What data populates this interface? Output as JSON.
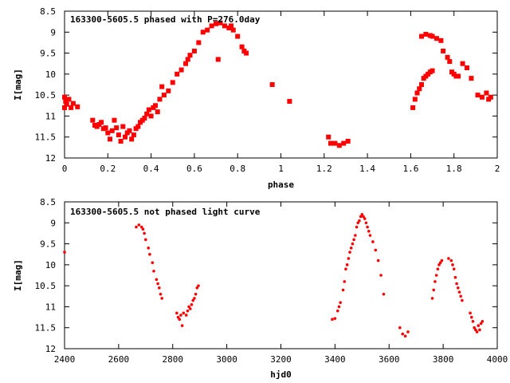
{
  "chart_data": [
    {
      "type": "scatter",
      "title": "163300-5605.5 phased with P=276.0day",
      "xlabel": "phase",
      "ylabel": "I[mag]",
      "xlim": [
        0,
        2
      ],
      "ylim": [
        12,
        8.5
      ],
      "y_inverted": true,
      "xticks": [
        "0",
        "0.2",
        "0.4",
        "0.6",
        "0.8",
        "1",
        "1.2",
        "1.4",
        "1.6",
        "1.8",
        "2"
      ],
      "yticks": [
        "8.5",
        "9",
        "9.5",
        "10",
        "10.5",
        "11",
        "11.5",
        "12"
      ],
      "grid": false,
      "color": "#ff0000",
      "points": [
        [
          0.0,
          10.55
        ],
        [
          0.005,
          10.65
        ],
        [
          0.01,
          10.72
        ],
        [
          0.02,
          10.6
        ],
        [
          0.03,
          10.8
        ],
        [
          0.04,
          10.7
        ],
        [
          0.06,
          10.78
        ],
        [
          0.0,
          10.8
        ],
        [
          0.13,
          11.1
        ],
        [
          0.14,
          11.22
        ],
        [
          0.15,
          11.25
        ],
        [
          0.16,
          11.2
        ],
        [
          0.17,
          11.15
        ],
        [
          0.18,
          11.3
        ],
        [
          0.19,
          11.28
        ],
        [
          0.2,
          11.4
        ],
        [
          0.21,
          11.55
        ],
        [
          0.22,
          11.35
        ],
        [
          0.23,
          11.1
        ],
        [
          0.24,
          11.28
        ],
        [
          0.25,
          11.45
        ],
        [
          0.26,
          11.6
        ],
        [
          0.27,
          11.25
        ],
        [
          0.28,
          11.5
        ],
        [
          0.29,
          11.4
        ],
        [
          0.3,
          11.35
        ],
        [
          0.31,
          11.55
        ],
        [
          0.32,
          11.45
        ],
        [
          0.33,
          11.3
        ],
        [
          0.34,
          11.25
        ],
        [
          0.35,
          11.15
        ],
        [
          0.36,
          11.1
        ],
        [
          0.37,
          11.05
        ],
        [
          0.38,
          10.95
        ],
        [
          0.39,
          10.85
        ],
        [
          0.4,
          11.0
        ],
        [
          0.41,
          10.8
        ],
        [
          0.42,
          10.75
        ],
        [
          0.43,
          10.9
        ],
        [
          0.44,
          10.6
        ],
        [
          0.45,
          10.3
        ],
        [
          0.46,
          10.5
        ],
        [
          0.48,
          10.4
        ],
        [
          0.5,
          10.2
        ],
        [
          0.52,
          10.0
        ],
        [
          0.54,
          9.9
        ],
        [
          0.56,
          9.75
        ],
        [
          0.57,
          9.65
        ],
        [
          0.58,
          9.55
        ],
        [
          0.6,
          9.45
        ],
        [
          0.62,
          9.25
        ],
        [
          0.64,
          9.0
        ],
        [
          0.66,
          8.95
        ],
        [
          0.68,
          8.85
        ],
        [
          0.7,
          8.8
        ],
        [
          0.71,
          9.65
        ],
        [
          0.72,
          8.78
        ],
        [
          0.74,
          8.85
        ],
        [
          0.76,
          8.9
        ],
        [
          0.77,
          8.85
        ],
        [
          0.78,
          8.95
        ],
        [
          0.8,
          9.1
        ],
        [
          0.82,
          9.35
        ],
        [
          0.83,
          9.45
        ],
        [
          0.84,
          9.5
        ],
        [
          0.96,
          10.25
        ],
        [
          1.04,
          10.65
        ],
        [
          1.22,
          11.5
        ],
        [
          1.23,
          11.65
        ],
        [
          1.25,
          11.65
        ],
        [
          1.27,
          11.7
        ],
        [
          1.29,
          11.65
        ],
        [
          1.31,
          11.6
        ],
        [
          1.61,
          10.8
        ],
        [
          1.62,
          10.6
        ],
        [
          1.63,
          10.45
        ],
        [
          1.64,
          10.35
        ],
        [
          1.65,
          10.25
        ],
        [
          1.66,
          10.1
        ],
        [
          1.67,
          10.05
        ],
        [
          1.68,
          10.0
        ],
        [
          1.69,
          9.95
        ],
        [
          1.7,
          9.92
        ],
        [
          1.65,
          9.1
        ],
        [
          1.67,
          9.05
        ],
        [
          1.69,
          9.08
        ],
        [
          1.7,
          9.1
        ],
        [
          1.72,
          9.15
        ],
        [
          1.74,
          9.2
        ],
        [
          1.75,
          9.45
        ],
        [
          1.77,
          9.6
        ],
        [
          1.78,
          9.7
        ],
        [
          1.79,
          9.95
        ],
        [
          1.8,
          10.0
        ],
        [
          1.81,
          10.05
        ],
        [
          1.82,
          10.05
        ],
        [
          1.84,
          9.75
        ],
        [
          1.86,
          9.85
        ],
        [
          1.88,
          10.1
        ],
        [
          1.91,
          10.5
        ],
        [
          1.93,
          10.55
        ],
        [
          1.95,
          10.45
        ],
        [
          1.96,
          10.6
        ],
        [
          1.97,
          10.55
        ]
      ]
    },
    {
      "type": "scatter",
      "title": "163300-5605.5 not phased light curve",
      "xlabel": "hjd0",
      "ylabel": "I[mag]",
      "xlim": [
        2400,
        4000
      ],
      "ylim": [
        12,
        8.5
      ],
      "y_inverted": true,
      "xticks": [
        "2400",
        "2600",
        "2800",
        "3000",
        "3200",
        "3400",
        "3600",
        "3800",
        "4000"
      ],
      "yticks": [
        "8.5",
        "9",
        "9.5",
        "10",
        "10.5",
        "11",
        "11.5",
        "12"
      ],
      "grid": false,
      "color": "#ff0000",
      "points": [
        [
          2400,
          9.7
        ],
        [
          2665,
          9.1
        ],
        [
          2675,
          9.05
        ],
        [
          2685,
          9.1
        ],
        [
          2690,
          9.15
        ],
        [
          2695,
          9.25
        ],
        [
          2700,
          9.4
        ],
        [
          2710,
          9.6
        ],
        [
          2715,
          9.75
        ],
        [
          2725,
          9.95
        ],
        [
          2730,
          10.15
        ],
        [
          2740,
          10.35
        ],
        [
          2745,
          10.45
        ],
        [
          2750,
          10.55
        ],
        [
          2755,
          10.7
        ],
        [
          2760,
          10.8
        ],
        [
          2815,
          11.15
        ],
        [
          2820,
          11.25
        ],
        [
          2825,
          11.3
        ],
        [
          2830,
          11.2
        ],
        [
          2835,
          11.45
        ],
        [
          2840,
          11.15
        ],
        [
          2850,
          11.2
        ],
        [
          2855,
          11.1
        ],
        [
          2860,
          11.0
        ],
        [
          2865,
          11.05
        ],
        [
          2870,
          10.95
        ],
        [
          2875,
          10.85
        ],
        [
          2880,
          10.8
        ],
        [
          2885,
          10.7
        ],
        [
          2890,
          10.55
        ],
        [
          2895,
          10.5
        ],
        [
          3390,
          11.3
        ],
        [
          3400,
          11.28
        ],
        [
          3410,
          11.1
        ],
        [
          3415,
          11.0
        ],
        [
          3420,
          10.9
        ],
        [
          3430,
          10.6
        ],
        [
          3435,
          10.4
        ],
        [
          3440,
          10.1
        ],
        [
          3445,
          10.0
        ],
        [
          3450,
          9.85
        ],
        [
          3455,
          9.7
        ],
        [
          3460,
          9.6
        ],
        [
          3465,
          9.5
        ],
        [
          3470,
          9.4
        ],
        [
          3475,
          9.3
        ],
        [
          3480,
          9.1
        ],
        [
          3485,
          9.0
        ],
        [
          3490,
          8.95
        ],
        [
          3495,
          8.85
        ],
        [
          3500,
          8.8
        ],
        [
          3505,
          8.85
        ],
        [
          3510,
          8.9
        ],
        [
          3515,
          9.0
        ],
        [
          3520,
          9.1
        ],
        [
          3525,
          9.2
        ],
        [
          3530,
          9.3
        ],
        [
          3540,
          9.45
        ],
        [
          3550,
          9.65
        ],
        [
          3560,
          9.9
        ],
        [
          3570,
          10.25
        ],
        [
          3580,
          10.7
        ],
        [
          3640,
          11.5
        ],
        [
          3650,
          11.65
        ],
        [
          3660,
          11.7
        ],
        [
          3670,
          11.6
        ],
        [
          3760,
          10.8
        ],
        [
          3765,
          10.6
        ],
        [
          3770,
          10.4
        ],
        [
          3775,
          10.25
        ],
        [
          3780,
          10.1
        ],
        [
          3785,
          10.0
        ],
        [
          3790,
          9.95
        ],
        [
          3795,
          9.9
        ],
        [
          3820,
          9.85
        ],
        [
          3830,
          9.9
        ],
        [
          3835,
          10.0
        ],
        [
          3840,
          10.1
        ],
        [
          3845,
          10.3
        ],
        [
          3850,
          10.45
        ],
        [
          3855,
          10.55
        ],
        [
          3860,
          10.65
        ],
        [
          3865,
          10.75
        ],
        [
          3870,
          10.85
        ],
        [
          3900,
          11.15
        ],
        [
          3905,
          11.25
        ],
        [
          3910,
          11.35
        ],
        [
          3915,
          11.5
        ],
        [
          3920,
          11.55
        ],
        [
          3925,
          11.6
        ],
        [
          3930,
          11.45
        ],
        [
          3935,
          11.55
        ],
        [
          3940,
          11.4
        ],
        [
          3945,
          11.35
        ]
      ]
    }
  ]
}
